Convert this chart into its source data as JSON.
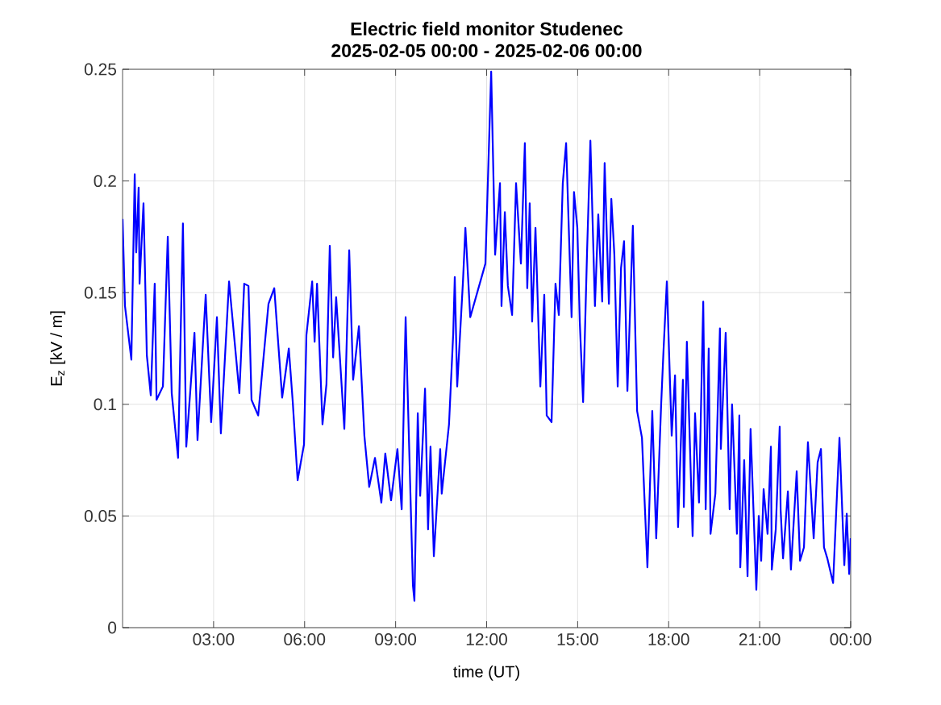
{
  "chart_data": {
    "type": "line",
    "title": "Electric field monitor Studenec",
    "subtitle": "2025-02-05 00:00 - 2025-02-06 00:00",
    "xlabel": "time (UT)",
    "ylabel": "E$_{z}$ [kV / m]",
    "xlim": [
      0,
      24
    ],
    "ylim": [
      0,
      0.25
    ],
    "xticks": [
      {
        "value": 3,
        "label": "03:00"
      },
      {
        "value": 6,
        "label": "06:00"
      },
      {
        "value": 9,
        "label": "09:00"
      },
      {
        "value": 12,
        "label": "12:00"
      },
      {
        "value": 15,
        "label": "15:00"
      },
      {
        "value": 18,
        "label": "18:00"
      },
      {
        "value": 21,
        "label": "21:00"
      },
      {
        "value": 24,
        "label": "00:00"
      }
    ],
    "yticks": [
      0,
      0.05,
      0.1,
      0.15,
      0.2,
      0.25
    ],
    "grid": true,
    "series": [
      {
        "color": "#0000ff",
        "x": [
          0,
          0.08,
          0.29,
          0.4,
          0.45,
          0.53,
          0.56,
          0.69,
          0.8,
          0.93,
          1.06,
          1.12,
          1.33,
          1.49,
          1.62,
          1.83,
          1.99,
          2.1,
          2.37,
          2.47,
          2.74,
          2.92,
          3.11,
          3.24,
          3.51,
          3.85,
          4.01,
          4.15,
          4.25,
          4.47,
          4.81,
          5.0,
          5.26,
          5.48,
          5.61,
          5.77,
          5.98,
          6.06,
          6.25,
          6.33,
          6.41,
          6.59,
          6.72,
          6.83,
          6.94,
          7.04,
          7.31,
          7.47,
          7.6,
          7.79,
          7.97,
          8.13,
          8.32,
          8.53,
          8.66,
          8.85,
          9.06,
          9.2,
          9.33,
          9.44,
          9.57,
          9.62,
          9.73,
          9.81,
          9.97,
          10.07,
          10.15,
          10.26,
          10.47,
          10.52,
          10.76,
          10.9,
          10.95,
          11.03,
          11.22,
          11.3,
          11.46,
          11.96,
          12.15,
          12.28,
          12.44,
          12.49,
          12.6,
          12.7,
          12.84,
          12.97,
          13.13,
          13.26,
          13.34,
          13.42,
          13.5,
          13.61,
          13.77,
          13.9,
          13.98,
          14.14,
          14.27,
          14.38,
          14.51,
          14.62,
          14.8,
          14.88,
          14.99,
          15.07,
          15.18,
          15.31,
          15.42,
          15.57,
          15.68,
          15.81,
          15.89,
          16.03,
          16.11,
          16.21,
          16.32,
          16.43,
          16.53,
          16.64,
          16.82,
          16.96,
          17.12,
          17.2,
          17.3,
          17.46,
          17.59,
          17.75,
          17.83,
          17.94,
          18.1,
          18.21,
          18.31,
          18.47,
          18.5,
          18.6,
          18.79,
          18.87,
          19.0,
          19.14,
          19.22,
          19.32,
          19.38,
          19.54,
          19.69,
          19.72,
          19.88,
          20.01,
          20.09,
          20.25,
          20.33,
          20.36,
          20.49,
          20.6,
          20.7,
          20.89,
          20.97,
          21.05,
          21.13,
          21.26,
          21.37,
          21.4,
          21.53,
          21.66,
          21.69,
          21.77,
          21.93,
          22.03,
          22.22,
          22.33,
          22.46,
          22.59,
          22.78,
          22.91,
          23.02,
          23.12,
          23.23,
          23.42,
          23.63,
          23.79,
          23.87,
          23.95,
          24
        ],
        "values": [
          0.183,
          0.144,
          0.12,
          0.203,
          0.168,
          0.197,
          0.154,
          0.19,
          0.122,
          0.104,
          0.154,
          0.102,
          0.108,
          0.175,
          0.105,
          0.076,
          0.181,
          0.081,
          0.132,
          0.084,
          0.149,
          0.092,
          0.139,
          0.087,
          0.155,
          0.105,
          0.154,
          0.153,
          0.102,
          0.095,
          0.145,
          0.152,
          0.103,
          0.125,
          0.101,
          0.066,
          0.082,
          0.131,
          0.155,
          0.128,
          0.154,
          0.091,
          0.109,
          0.171,
          0.121,
          0.148,
          0.089,
          0.169,
          0.111,
          0.135,
          0.086,
          0.063,
          0.076,
          0.056,
          0.078,
          0.057,
          0.08,
          0.053,
          0.139,
          0.084,
          0.019,
          0.012,
          0.096,
          0.059,
          0.107,
          0.044,
          0.081,
          0.032,
          0.08,
          0.06,
          0.091,
          0.132,
          0.157,
          0.108,
          0.155,
          0.179,
          0.139,
          0.163,
          0.249,
          0.167,
          0.199,
          0.144,
          0.186,
          0.153,
          0.14,
          0.199,
          0.163,
          0.217,
          0.152,
          0.19,
          0.137,
          0.179,
          0.108,
          0.149,
          0.095,
          0.092,
          0.154,
          0.14,
          0.199,
          0.217,
          0.139,
          0.195,
          0.179,
          0.137,
          0.101,
          0.168,
          0.218,
          0.144,
          0.185,
          0.146,
          0.208,
          0.145,
          0.192,
          0.167,
          0.108,
          0.161,
          0.173,
          0.106,
          0.18,
          0.097,
          0.085,
          0.059,
          0.027,
          0.097,
          0.04,
          0.099,
          0.124,
          0.155,
          0.086,
          0.113,
          0.045,
          0.111,
          0.054,
          0.128,
          0.041,
          0.096,
          0.056,
          0.146,
          0.053,
          0.125,
          0.042,
          0.06,
          0.134,
          0.08,
          0.132,
          0.053,
          0.1,
          0.042,
          0.095,
          0.027,
          0.075,
          0.023,
          0.089,
          0.017,
          0.05,
          0.03,
          0.062,
          0.042,
          0.081,
          0.026,
          0.044,
          0.09,
          0.053,
          0.031,
          0.061,
          0.026,
          0.07,
          0.03,
          0.036,
          0.083,
          0.04,
          0.074,
          0.08,
          0.036,
          0.031,
          0.02,
          0.085,
          0.028,
          0.051,
          0.024,
          0.04
        ]
      }
    ]
  }
}
